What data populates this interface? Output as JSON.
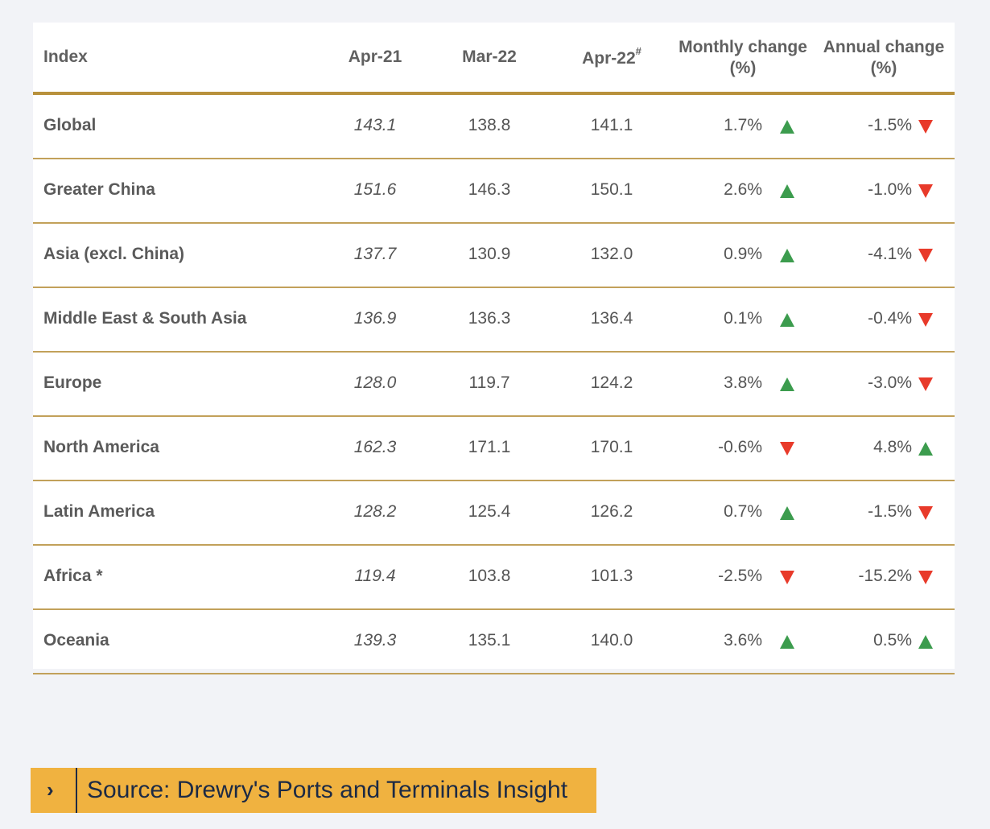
{
  "table": {
    "headers": {
      "index": "Index",
      "col1": "Apr-21",
      "col2": "Mar-22",
      "col3": "Apr-22",
      "col3_sup": "#",
      "monthly_line1": "Monthly change",
      "monthly_line2": "(%)",
      "annual_line1": "Annual change",
      "annual_line2": "(%)"
    },
    "rows": [
      {
        "name": "Global",
        "apr21": "143.1",
        "mar22": "138.8",
        "apr22": "141.1",
        "monthly": "1.7%",
        "monthly_dir": "up",
        "annual": "-1.5%",
        "annual_dir": "down"
      },
      {
        "name": "Greater China",
        "apr21": "151.6",
        "mar22": "146.3",
        "apr22": "150.1",
        "monthly": "2.6%",
        "monthly_dir": "up",
        "annual": "-1.0%",
        "annual_dir": "down"
      },
      {
        "name": "Asia (excl. China)",
        "apr21": "137.7",
        "mar22": "130.9",
        "apr22": "132.0",
        "monthly": "0.9%",
        "monthly_dir": "up",
        "annual": "-4.1%",
        "annual_dir": "down"
      },
      {
        "name": "Middle East & South Asia",
        "apr21": "136.9",
        "mar22": "136.3",
        "apr22": "136.4",
        "monthly": "0.1%",
        "monthly_dir": "up",
        "annual": "-0.4%",
        "annual_dir": "down"
      },
      {
        "name": "Europe",
        "apr21": "128.0",
        "mar22": "119.7",
        "apr22": "124.2",
        "monthly": "3.8%",
        "monthly_dir": "up",
        "annual": "-3.0%",
        "annual_dir": "down"
      },
      {
        "name": "North America",
        "apr21": "162.3",
        "mar22": "171.1",
        "apr22": "170.1",
        "monthly": "-0.6%",
        "monthly_dir": "down",
        "annual": "4.8%",
        "annual_dir": "up"
      },
      {
        "name": "Latin America",
        "apr21": "128.2",
        "mar22": "125.4",
        "apr22": "126.2",
        "monthly": "0.7%",
        "monthly_dir": "up",
        "annual": "-1.5%",
        "annual_dir": "down"
      },
      {
        "name": "Africa *",
        "apr21": "119.4",
        "mar22": "103.8",
        "apr22": "101.3",
        "monthly": "-2.5%",
        "monthly_dir": "down",
        "annual": "-15.2%",
        "annual_dir": "down"
      },
      {
        "name": "Oceania",
        "apr21": "139.3",
        "mar22": "135.1",
        "apr22": "140.0",
        "monthly": "3.6%",
        "monthly_dir": "up",
        "annual": "0.5%",
        "annual_dir": "up"
      }
    ]
  },
  "source": {
    "icon": "chevron-right-icon",
    "chevron": "›",
    "text": "Source: Drewry's Ports and Terminals Insight"
  },
  "colors": {
    "background": "#f2f3f7",
    "rule": "#b8913c",
    "up": "#3c9c4e",
    "down": "#e83a2a",
    "source_bar": "#f0b240",
    "source_text": "#1c2a45"
  }
}
